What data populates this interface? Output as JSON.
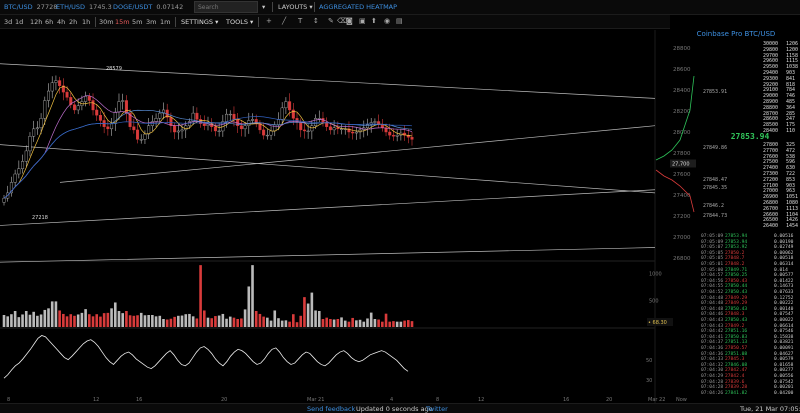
{
  "header": {
    "tickers": [
      {
        "symbol": "BTC/USD",
        "price": "27728"
      },
      {
        "symbol": "ETH/USD",
        "price": "1745.3"
      },
      {
        "symbol": "DOGE/USDT",
        "price": "0.07142"
      }
    ],
    "search_placeholder": "Search",
    "menus": {
      "layouts": "LAYOUTS",
      "heatmap": "AGGREGATED HEATMAP"
    }
  },
  "toolbar": {
    "timeframes": [
      "3d",
      "1d",
      "12h",
      "6h",
      "4h",
      "2h",
      "1h",
      "30m",
      "15m",
      "5m",
      "3m",
      "1m"
    ],
    "active_timeframe": "15m",
    "settings": "SETTINGS",
    "tools": "TOOLS",
    "icons": [
      "crosshair-icon",
      "line-icon",
      "text-icon",
      "measure-icon",
      "brush-icon",
      "eraser-icon",
      "camera-icon",
      "save-icon",
      "share-icon",
      "eye-icon",
      "lock-icon"
    ]
  },
  "chart_data": [
    {
      "type": "candlestick",
      "title": "",
      "price_ticks": [
        "28800",
        "28600",
        "28400",
        "28200",
        "28000",
        "27800",
        "27600",
        "27400",
        "27200",
        "27000",
        "26800"
      ],
      "annotations": [
        {
          "label": "28579",
          "value": 28579
        },
        {
          "label": "27218",
          "value": 27218
        }
      ],
      "last_price_label": "27,700",
      "close": [
        27370,
        27420,
        27520,
        27600,
        27650,
        27720,
        27820,
        27960,
        28030,
        28040,
        28130,
        28300,
        28390,
        28470,
        28490,
        28440,
        28380,
        28330,
        28260,
        28210,
        28250,
        28290,
        28340,
        28300,
        28210,
        28160,
        28110,
        28050,
        28030,
        28080,
        28190,
        28290,
        28300,
        28180,
        28050,
        28020,
        27930,
        27930,
        27980,
        28060,
        28100,
        28130,
        28180,
        28210,
        28140,
        28060,
        28000,
        28010,
        28020,
        28060,
        28100,
        28180,
        28120,
        28080,
        28060,
        28080,
        28050,
        28010,
        28010,
        28100,
        28170,
        28170,
        28120,
        28060,
        28030,
        28060,
        28110,
        28120,
        28080,
        28020,
        27970,
        27970,
        28010,
        28070,
        28120,
        28230,
        28290,
        28210,
        28130,
        28090,
        28020,
        28010,
        28010,
        28060,
        28130,
        28130,
        28090,
        28050,
        28020,
        28040,
        28030,
        28030,
        28030,
        28000,
        27990,
        28000,
        28020,
        28040,
        28070,
        28090,
        28100,
        28070,
        28040,
        28000,
        27970,
        27960,
        27970,
        27990,
        27970,
        27950,
        27930
      ]
    },
    {
      "type": "bar",
      "title": "volume",
      "y_ticks": [
        "1000",
        "500"
      ],
      "last_value": "68.30",
      "values": [
        225,
        200,
        240,
        300,
        185,
        235,
        300,
        230,
        285,
        210,
        235,
        320,
        350,
        480,
        480,
        310,
        245,
        200,
        240,
        210,
        235,
        265,
        335,
        240,
        200,
        240,
        195,
        260,
        265,
        350,
        460,
        300,
        260,
        300,
        220,
        210,
        220,
        265,
        220,
        225,
        225,
        200,
        210,
        150,
        140,
        155,
        190,
        210,
        215,
        240,
        245,
        200,
        160,
        1160,
        310,
        175,
        165,
        205,
        215,
        245,
        155,
        195,
        175,
        150,
        160,
        330,
        760,
        1160,
        300,
        245,
        195,
        175,
        120,
        310,
        165,
        120,
        125,
        100,
        240,
        90,
        210,
        560,
        440,
        645,
        310,
        300,
        150,
        175,
        150,
        140,
        150,
        180,
        120,
        100,
        170,
        125,
        135,
        100,
        160,
        270,
        150,
        140,
        100,
        250,
        100,
        110,
        100,
        100,
        120,
        130,
        110
      ]
    },
    {
      "type": "line",
      "title": "oscillator",
      "y_ticks": [
        "50",
        "30"
      ],
      "values": [
        20,
        25,
        32,
        38,
        42,
        48,
        55,
        62,
        70,
        78,
        82,
        80,
        74,
        68,
        62,
        56,
        50,
        47,
        52,
        58,
        64,
        70,
        74,
        76,
        72,
        66,
        58,
        50,
        44,
        40,
        46,
        52,
        56,
        58,
        54,
        48,
        44,
        40,
        36,
        34,
        38,
        44,
        50,
        56,
        60,
        54,
        46,
        40,
        38,
        42,
        50,
        58,
        64,
        66,
        62,
        56,
        48,
        42,
        38,
        44,
        52,
        58,
        62,
        60,
        56,
        50,
        44,
        40,
        42,
        48,
        56,
        62,
        64,
        58,
        50,
        44,
        40,
        42,
        48,
        54,
        58,
        56,
        50,
        44,
        40,
        38,
        42,
        48,
        54,
        58,
        60,
        56,
        50,
        46,
        44,
        46,
        50,
        54,
        56,
        58,
        60,
        58,
        54,
        50,
        46,
        40,
        34,
        30
      ],
      "x_ticks": [
        "8",
        "12",
        "16",
        "20",
        "Mar 21",
        "4",
        "8",
        "12",
        "16",
        "20",
        "Mar 22",
        "Now"
      ]
    }
  ],
  "orderbook": {
    "title": "Coinbase Pro BTC/USD",
    "asks": [
      {
        "price": "30000",
        "size": "1206"
      },
      {
        "price": "29800",
        "size": "1200"
      },
      {
        "price": "29700",
        "size": "1158"
      },
      {
        "price": "29600",
        "size": "1115"
      },
      {
        "price": "29500",
        "size": "1038"
      },
      {
        "price": "29400",
        "size": "903"
      },
      {
        "price": "29300",
        "size": "841"
      },
      {
        "price": "29200",
        "size": "818"
      },
      {
        "price": "29100",
        "size": "784"
      },
      {
        "price": "29000",
        "size": "746"
      },
      {
        "price": "28900",
        "size": "485"
      },
      {
        "price": "28800",
        "size": "364"
      },
      {
        "price": "28700",
        "size": "285"
      },
      {
        "price": "28600",
        "size": "247"
      },
      {
        "price": "28500",
        "size": "175"
      },
      {
        "price": "28400",
        "size": "110"
      }
    ],
    "mid_price": "27853.94",
    "bids": [
      {
        "price": "27800",
        "size": "325"
      },
      {
        "price": "27700",
        "size": "472"
      },
      {
        "price": "27600",
        "size": "538"
      },
      {
        "price": "27500",
        "size": "596"
      },
      {
        "price": "27400",
        "size": "630"
      },
      {
        "price": "27300",
        "size": "722"
      },
      {
        "price": "27200",
        "size": "853"
      },
      {
        "price": "27100",
        "size": "903"
      },
      {
        "price": "27000",
        "size": "963"
      },
      {
        "price": "26900",
        "size": "1051"
      },
      {
        "price": "26800",
        "size": "1080"
      },
      {
        "price": "26700",
        "size": "1113"
      },
      {
        "price": "26600",
        "size": "1104"
      },
      {
        "price": "26500",
        "size": "1426"
      },
      {
        "price": "26400",
        "size": "1454"
      }
    ],
    "left_labels": [
      "27853.91",
      "27849.86",
      "27848.47",
      "27845.35",
      "27846.2",
      "27844.73"
    ]
  },
  "trades": [
    {
      "time": "07:05:09",
      "price": "27853.94",
      "side": "buy",
      "size": "0.00516"
    },
    {
      "time": "07:05:09",
      "price": "27853.94",
      "side": "buy",
      "size": "0.00190"
    },
    {
      "time": "07:05:07",
      "price": "27853.92",
      "side": "buy",
      "size": "0.02749"
    },
    {
      "time": "07:05:05",
      "price": "27850.2",
      "side": "sell",
      "size": "0.00062"
    },
    {
      "time": "07:05:05",
      "price": "27848.7",
      "side": "sell",
      "size": "0.00518"
    },
    {
      "time": "07:05:01",
      "price": "27848.2",
      "side": "sell",
      "size": "0.06314"
    },
    {
      "time": "07:05:00",
      "price": "27849.71",
      "side": "buy",
      "size": "0.014"
    },
    {
      "time": "07:04:57",
      "price": "27850.25",
      "side": "buy",
      "size": "0.00577"
    },
    {
      "time": "07:04:56",
      "price": "27850.43",
      "side": "sell",
      "size": "0.01422"
    },
    {
      "time": "07:04:55",
      "price": "27850.44",
      "side": "buy",
      "size": "0.14673"
    },
    {
      "time": "07:04:52",
      "price": "27850.43",
      "side": "buy",
      "size": "0.07633"
    },
    {
      "time": "07:04:48",
      "price": "27849.29",
      "side": "sell",
      "size": "0.12752"
    },
    {
      "time": "07:04:48",
      "price": "27849.29",
      "side": "sell",
      "size": "0.00222"
    },
    {
      "time": "07:04:48",
      "price": "27850.43",
      "side": "buy",
      "size": "0.00140"
    },
    {
      "time": "07:04:46",
      "price": "27848.3",
      "side": "sell",
      "size": "0.07547"
    },
    {
      "time": "07:04:43",
      "price": "27850.43",
      "side": "buy",
      "size": "0.00022"
    },
    {
      "time": "07:04:43",
      "price": "27849.2",
      "side": "sell",
      "size": "0.06614"
    },
    {
      "time": "07:04:42",
      "price": "27851.16",
      "side": "buy",
      "size": "0.07546"
    },
    {
      "time": "07:04:41",
      "price": "27850.83",
      "side": "buy",
      "size": "0.15838"
    },
    {
      "time": "07:04:37",
      "price": "27851.13",
      "side": "buy",
      "size": "0.03821"
    },
    {
      "time": "07:04:36",
      "price": "27850.57",
      "side": "sell",
      "size": "0.00091"
    },
    {
      "time": "07:04:36",
      "price": "27851.08",
      "side": "buy",
      "size": "0.04627"
    },
    {
      "time": "07:04:33",
      "price": "27845.3",
      "side": "sell",
      "size": "0.00579"
    },
    {
      "time": "07:04:32",
      "price": "27846.08",
      "side": "buy",
      "size": "0.01658"
    },
    {
      "time": "07:04:30",
      "price": "27842.47",
      "side": "sell",
      "size": "0.00277"
    },
    {
      "time": "07:04:29",
      "price": "27842.4",
      "side": "sell",
      "size": "0.00556"
    },
    {
      "time": "07:04:28",
      "price": "27839.6",
      "side": "sell",
      "size": "0.07542"
    },
    {
      "time": "07:04:28",
      "price": "27839.28",
      "side": "sell",
      "size": "0.00201"
    },
    {
      "time": "07:04:26",
      "price": "27841.82",
      "side": "buy",
      "size": "0.04200"
    }
  ],
  "statusbar": {
    "feedback": "Send feedback",
    "updated": "Updated 0 seconds ago",
    "twitter": "Twitter",
    "clock": "Tue, 21 Mar 07:05:09"
  },
  "colors": {
    "up": "#2ec45a",
    "down": "#d93b3b",
    "accent": "#3d8fe0"
  }
}
